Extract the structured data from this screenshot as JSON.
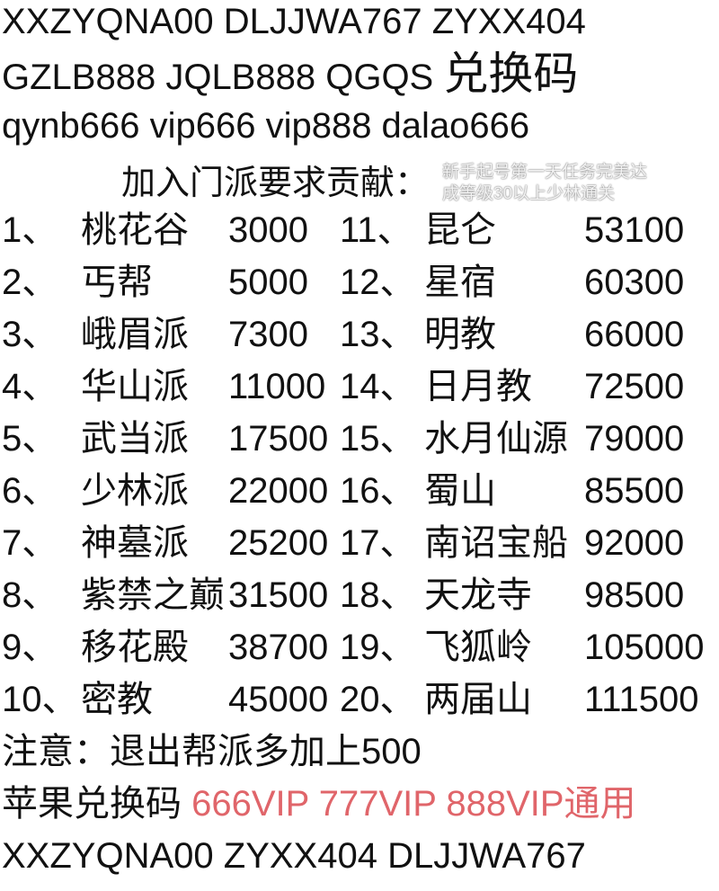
{
  "codes": {
    "line1": "XXZYQNA00  DLJJWA767 ZYXX404",
    "line2": "GZLB888  JQLB888  QGQS",
    "line2_label": "兑换码",
    "line3": "qynb666 vip666 vip888 dalao666"
  },
  "heading": "加入门派要求贡献：",
  "rows": [
    {
      "l_no": "1、",
      "l_name": "桃花谷",
      "l_val": "3000",
      "r_no": "11、",
      "r_name": "昆仑",
      "r_val": "53100"
    },
    {
      "l_no": "2、",
      "l_name": "丐帮",
      "l_val": "5000",
      "r_no": "12、",
      "r_name": "星宿",
      "r_val": "60300"
    },
    {
      "l_no": "3、",
      "l_name": "峨眉派",
      "l_val": "7300",
      "r_no": "13、",
      "r_name": "明教",
      "r_val": "66000"
    },
    {
      "l_no": "4、",
      "l_name": "华山派",
      "l_val": "11000",
      "r_no": "14、",
      "r_name": "日月教",
      "r_val": "72500"
    },
    {
      "l_no": "5、",
      "l_name": "武当派",
      "l_val": "17500",
      "r_no": "15、",
      "r_name": "水月仙源",
      "r_val": "79000"
    },
    {
      "l_no": "6、",
      "l_name": "少林派",
      "l_val": "22000",
      "r_no": "16、",
      "r_name": "蜀山",
      "r_val": "85500"
    },
    {
      "l_no": "7、",
      "l_name": "神墓派",
      "l_val": "25200",
      "r_no": "17、",
      "r_name": "南诏宝船",
      "r_val": "92000"
    },
    {
      "l_no": "8、",
      "l_name": "紫禁之巅",
      "l_val": "31500",
      "r_no": "18、",
      "r_name": "天龙寺",
      "r_val": "98500"
    },
    {
      "l_no": "9、",
      "l_name": "移花殿",
      "l_val": "38700",
      "r_no": "19、",
      "r_name": "飞狐岭",
      "r_val": "105000"
    },
    {
      "l_no": "10、",
      "l_name": "密教",
      "l_val": "45000",
      "r_no": "20、",
      "r_name": "两届山",
      "r_val": "111500"
    }
  ],
  "note": "注意：退出帮派多加上500",
  "apple": {
    "label": "苹果兑换码",
    "codes": "666VIP 777VIP 888VIP通用",
    "color": "#e0656a"
  },
  "footer_codes": "XXZYQNA00  ZYXX404  DLJJWA767",
  "watermark": {
    "line1": "新手起号第一天任务完美达",
    "line2": "成等级30以上少林通关"
  }
}
